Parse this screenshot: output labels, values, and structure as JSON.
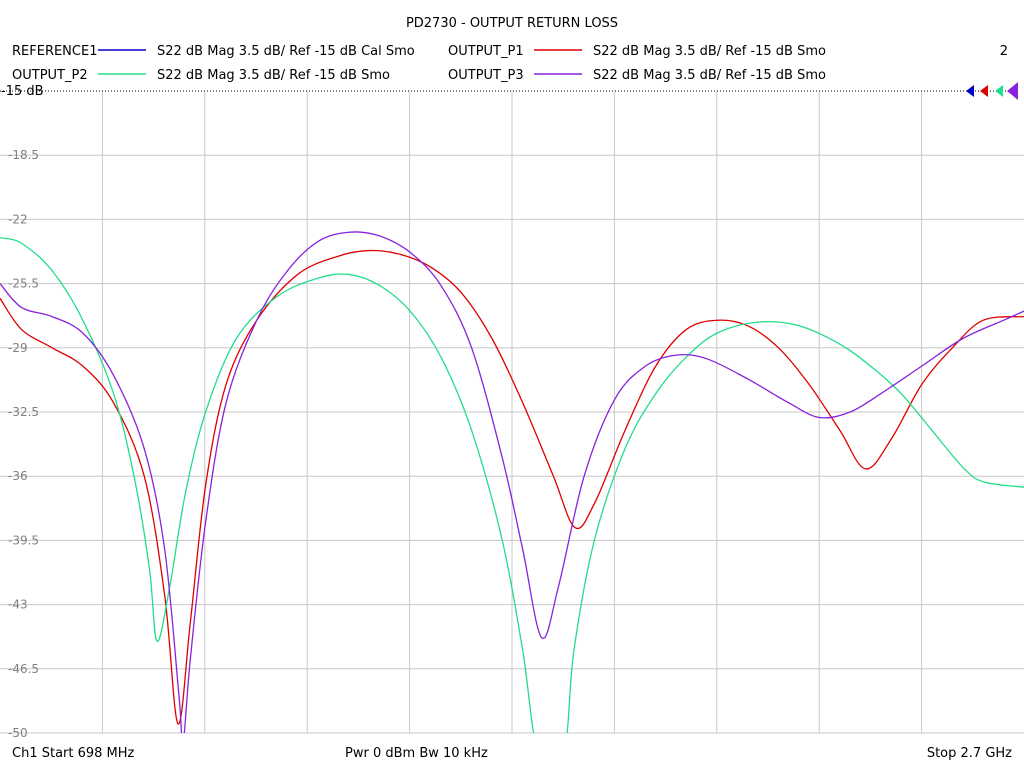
{
  "chart_data": {
    "type": "line",
    "title": "PD2730 - OUTPUT RETURN LOSS",
    "trace_number": "2",
    "reference_label": "-15 dB",
    "ylim": [
      -50,
      -15
    ],
    "y_ticks": [
      "-15",
      "-18.5",
      "-22",
      "-25.5",
      "-29",
      "-32.5",
      "-36",
      "-39.5",
      "-43",
      "-46.5",
      "-50"
    ],
    "x_start_ghz": 0.698,
    "x_stop_ghz": 2.7,
    "grid": true,
    "legend": [
      {
        "name": "REFERENCE1",
        "desc": "S22  dB Mag  3.5 dB/ Ref -15 dB  Cal Smo",
        "color": "#0000cc"
      },
      {
        "name": "OUTPUT_P1",
        "desc": "S22  dB Mag  3.5 dB/ Ref -15 dB  Smo",
        "color": "#dd0000"
      },
      {
        "name": "OUTPUT_P2",
        "desc": "S22  dB Mag  3.5 dB/ Ref -15 dB  Smo",
        "color": "#22dd88"
      },
      {
        "name": "OUTPUT_P3",
        "desc": "S22  dB Mag  3.5 dB/ Ref -15 dB  Smo",
        "color": "#8822dd"
      }
    ],
    "series": [
      {
        "name": "OUTPUT_P1",
        "color": "#dd0000",
        "points": [
          [
            0.698,
            -26.3
          ],
          [
            0.74,
            -28.0
          ],
          [
            0.8,
            -29.0
          ],
          [
            0.86,
            -30.0
          ],
          [
            0.92,
            -32.0
          ],
          [
            0.98,
            -36.0
          ],
          [
            1.02,
            -42.5
          ],
          [
            1.046,
            -49.5
          ],
          [
            1.07,
            -44.0
          ],
          [
            1.1,
            -36.5
          ],
          [
            1.14,
            -31.0
          ],
          [
            1.2,
            -27.5
          ],
          [
            1.28,
            -25.0
          ],
          [
            1.36,
            -24.0
          ],
          [
            1.42,
            -23.7
          ],
          [
            1.48,
            -23.9
          ],
          [
            1.54,
            -24.6
          ],
          [
            1.6,
            -26.0
          ],
          [
            1.66,
            -28.5
          ],
          [
            1.72,
            -32.0
          ],
          [
            1.78,
            -36.0
          ],
          [
            1.822,
            -38.8
          ],
          [
            1.86,
            -37.5
          ],
          [
            1.92,
            -33.5
          ],
          [
            1.98,
            -30.0
          ],
          [
            2.04,
            -28.0
          ],
          [
            2.1,
            -27.5
          ],
          [
            2.16,
            -27.8
          ],
          [
            2.22,
            -29.0
          ],
          [
            2.28,
            -31.0
          ],
          [
            2.34,
            -33.5
          ],
          [
            2.39,
            -35.6
          ],
          [
            2.44,
            -34.0
          ],
          [
            2.5,
            -31.0
          ],
          [
            2.56,
            -29.0
          ],
          [
            2.62,
            -27.5
          ],
          [
            2.7,
            -27.3
          ]
        ]
      },
      {
        "name": "OUTPUT_P2",
        "color": "#22dd88",
        "points": [
          [
            0.698,
            -23.0
          ],
          [
            0.74,
            -23.3
          ],
          [
            0.8,
            -24.8
          ],
          [
            0.86,
            -27.5
          ],
          [
            0.92,
            -31.5
          ],
          [
            0.96,
            -36.0
          ],
          [
            0.99,
            -41.0
          ],
          [
            1.005,
            -45.0
          ],
          [
            1.03,
            -42.0
          ],
          [
            1.06,
            -37.0
          ],
          [
            1.1,
            -32.5
          ],
          [
            1.16,
            -28.5
          ],
          [
            1.24,
            -26.2
          ],
          [
            1.32,
            -25.2
          ],
          [
            1.38,
            -25.0
          ],
          [
            1.44,
            -25.6
          ],
          [
            1.5,
            -27.0
          ],
          [
            1.56,
            -29.5
          ],
          [
            1.62,
            -33.5
          ],
          [
            1.68,
            -39.5
          ],
          [
            1.72,
            -45.5
          ],
          [
            1.75,
            -51.0
          ],
          [
            1.8,
            -51.0
          ],
          [
            1.82,
            -45.5
          ],
          [
            1.86,
            -39.5
          ],
          [
            1.92,
            -34.5
          ],
          [
            1.98,
            -31.5
          ],
          [
            2.04,
            -29.5
          ],
          [
            2.1,
            -28.2
          ],
          [
            2.18,
            -27.6
          ],
          [
            2.26,
            -27.8
          ],
          [
            2.34,
            -28.8
          ],
          [
            2.4,
            -30.0
          ],
          [
            2.46,
            -31.5
          ],
          [
            2.52,
            -33.5
          ],
          [
            2.58,
            -35.5
          ],
          [
            2.62,
            -36.3
          ],
          [
            2.7,
            -36.6
          ]
        ]
      },
      {
        "name": "OUTPUT_P3",
        "color": "#8822dd",
        "points": [
          [
            0.698,
            -25.5
          ],
          [
            0.74,
            -26.8
          ],
          [
            0.8,
            -27.3
          ],
          [
            0.86,
            -28.2
          ],
          [
            0.92,
            -30.5
          ],
          [
            0.98,
            -34.5
          ],
          [
            1.02,
            -40.0
          ],
          [
            1.048,
            -48.0
          ],
          [
            1.056,
            -50.5
          ],
          [
            1.07,
            -46.0
          ],
          [
            1.1,
            -38.5
          ],
          [
            1.14,
            -32.0
          ],
          [
            1.2,
            -27.5
          ],
          [
            1.26,
            -24.8
          ],
          [
            1.32,
            -23.2
          ],
          [
            1.38,
            -22.7
          ],
          [
            1.44,
            -22.9
          ],
          [
            1.5,
            -23.8
          ],
          [
            1.56,
            -25.6
          ],
          [
            1.62,
            -29.0
          ],
          [
            1.68,
            -35.0
          ],
          [
            1.72,
            -40.0
          ],
          [
            1.757,
            -44.8
          ],
          [
            1.79,
            -42.0
          ],
          [
            1.84,
            -36.0
          ],
          [
            1.9,
            -31.8
          ],
          [
            1.96,
            -30.0
          ],
          [
            2.02,
            -29.4
          ],
          [
            2.08,
            -29.6
          ],
          [
            2.16,
            -30.7
          ],
          [
            2.24,
            -32.0
          ],
          [
            2.3,
            -32.8
          ],
          [
            2.36,
            -32.5
          ],
          [
            2.42,
            -31.5
          ],
          [
            2.5,
            -30.0
          ],
          [
            2.58,
            -28.5
          ],
          [
            2.66,
            -27.5
          ],
          [
            2.7,
            -27.0
          ]
        ]
      }
    ]
  },
  "footer": {
    "left": "Ch1  Start  698 MHz",
    "center": "Pwr  0 dBm  Bw  10 kHz",
    "right": "Stop  2.7 GHz"
  }
}
